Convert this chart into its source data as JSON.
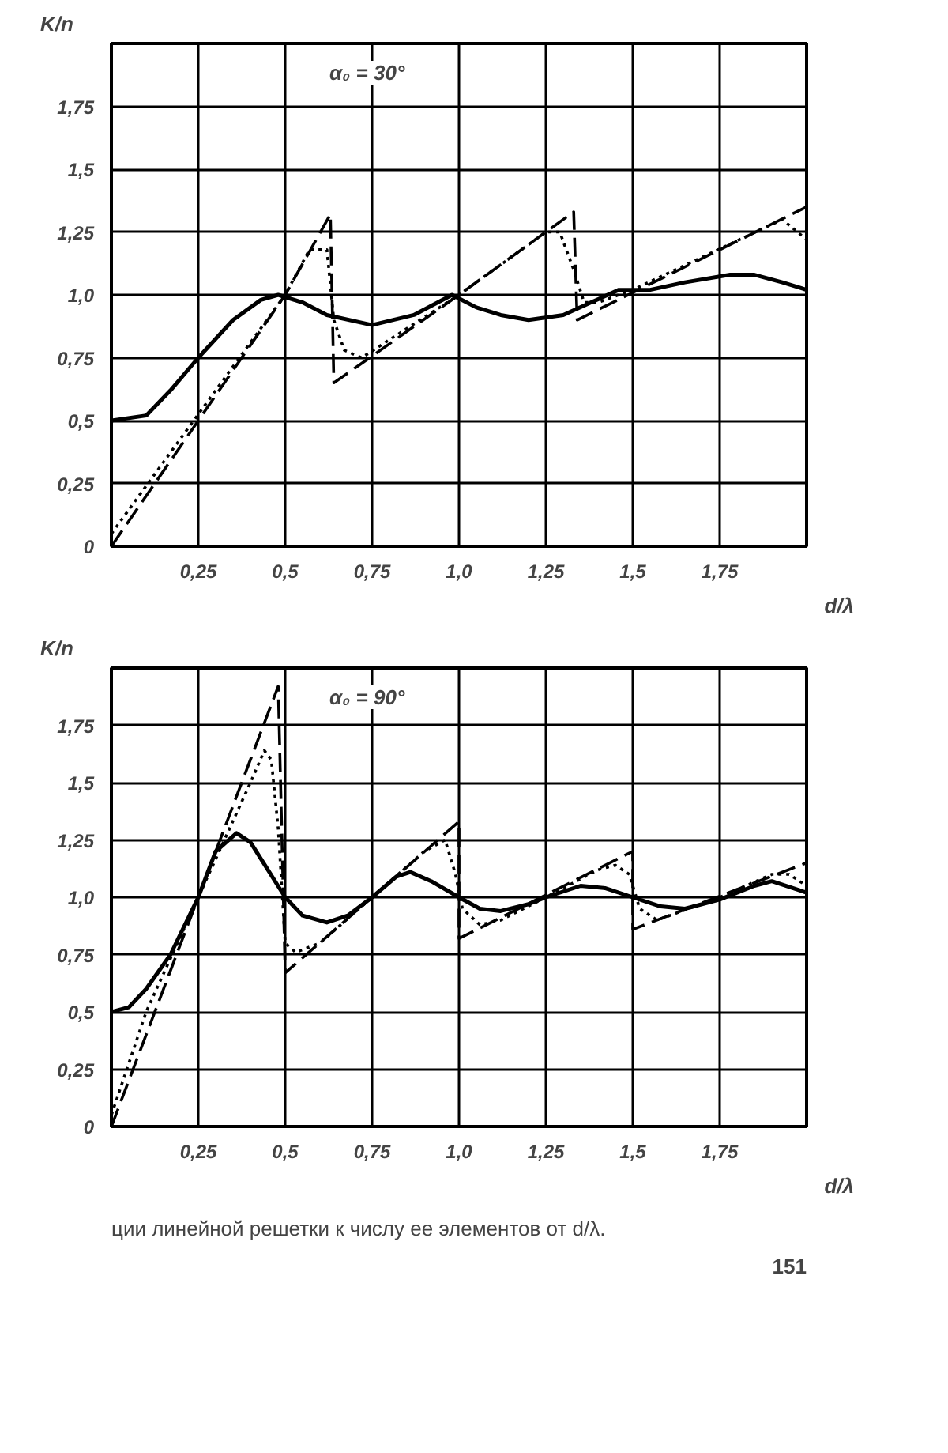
{
  "chart_data": [
    {
      "type": "line",
      "xlabel": "d/λ",
      "ylabel": "K/n",
      "annotations": [
        "α₀ = 30°"
      ],
      "xlim": [
        0,
        2
      ],
      "ylim": [
        0,
        2
      ],
      "grid": true,
      "xticks": [
        {
          "value": 0,
          "label": null
        },
        {
          "value": 0.25,
          "label": "0,25"
        },
        {
          "value": 0.5,
          "label": "0,5"
        },
        {
          "value": 0.75,
          "label": "0,75"
        },
        {
          "value": 1,
          "label": "1,0"
        },
        {
          "value": 1.25,
          "label": "1,25"
        },
        {
          "value": 1.5,
          "label": "1,5"
        },
        {
          "value": 1.75,
          "label": "1,75"
        }
      ],
      "yticks": [
        {
          "value": 0,
          "label": "0"
        },
        {
          "value": 0.25,
          "label": "0,25"
        },
        {
          "value": 0.5,
          "label": "0,5"
        },
        {
          "value": 0.75,
          "label": "0,75"
        },
        {
          "value": 1,
          "label": "1,0"
        },
        {
          "value": 1.25,
          "label": "1,25"
        },
        {
          "value": 1.5,
          "label": "1,5"
        },
        {
          "value": 1.75,
          "label": "1,75"
        }
      ],
      "series": [
        {
          "color": "#000000",
          "line_style": "solid",
          "x": [
            0,
            0.1,
            0.17,
            0.25,
            0.35,
            0.43,
            0.48,
            0.55,
            0.62,
            0.75,
            0.87,
            0.98,
            1.05,
            1.12,
            1.2,
            1.3,
            1.38,
            1.46,
            1.55,
            1.65,
            1.78,
            1.85,
            1.93,
            2.0
          ],
          "values": [
            0.5,
            0.52,
            0.62,
            0.75,
            0.9,
            0.98,
            1.0,
            0.97,
            0.92,
            0.88,
            0.92,
            1.0,
            0.95,
            0.92,
            0.9,
            0.92,
            0.97,
            1.02,
            1.02,
            1.05,
            1.08,
            1.08,
            1.05,
            1.02
          ]
        },
        {
          "color": "#000000",
          "line_style": "dashed",
          "x": [
            0,
            0.5,
            0.63,
            0.64,
            1.0,
            1.33,
            1.34,
            2.0
          ],
          "values": [
            0,
            1.0,
            1.32,
            0.65,
            1.0,
            1.33,
            0.9,
            1.35
          ]
        },
        {
          "color": "#000000",
          "line_style": "dotted",
          "x": [
            0,
            0.5,
            0.57,
            0.62,
            0.64,
            0.67,
            0.72,
            1.0,
            1.25,
            1.29,
            1.33,
            1.36,
            1.4,
            1.5,
            1.93,
            2.0
          ],
          "values": [
            0.05,
            1.0,
            1.18,
            1.18,
            0.9,
            0.78,
            0.75,
            1.0,
            1.25,
            1.25,
            1.1,
            0.97,
            0.97,
            1.02,
            1.3,
            1.22
          ]
        }
      ]
    },
    {
      "type": "line",
      "xlabel": "d/λ",
      "ylabel": "K/n",
      "annotations": [
        "α₀ = 90°",
        "ции линейной решетки к числу ее элементов от d/λ.",
        "151"
      ],
      "xlim": [
        0,
        2
      ],
      "ylim": [
        0,
        2
      ],
      "grid": true,
      "xticks": [
        {
          "value": 0,
          "label": null
        },
        {
          "value": 0.25,
          "label": "0,25"
        },
        {
          "value": 0.5,
          "label": "0,5"
        },
        {
          "value": 0.75,
          "label": "0,75"
        },
        {
          "value": 1,
          "label": "1,0"
        },
        {
          "value": 1.25,
          "label": "1,25"
        },
        {
          "value": 1.5,
          "label": "1,5"
        },
        {
          "value": 1.75,
          "label": "1,75"
        }
      ],
      "yticks": [
        {
          "value": 0,
          "label": "0"
        },
        {
          "value": 0.25,
          "label": "0,25"
        },
        {
          "value": 0.5,
          "label": "0,5"
        },
        {
          "value": 0.75,
          "label": "0,75"
        },
        {
          "value": 1,
          "label": "1,0"
        },
        {
          "value": 1.25,
          "label": "1,25"
        },
        {
          "value": 1.5,
          "label": "1,5"
        },
        {
          "value": 1.75,
          "label": "1,75"
        }
      ],
      "series": [
        {
          "color": "#000000",
          "line_style": "solid",
          "x": [
            0,
            0.05,
            0.1,
            0.17,
            0.25,
            0.3,
            0.36,
            0.4,
            0.45,
            0.5,
            0.55,
            0.62,
            0.68,
            0.75,
            0.82,
            0.86,
            0.92,
            1.0,
            1.06,
            1.12,
            1.2,
            1.25,
            1.35,
            1.42,
            1.5,
            1.58,
            1.65,
            1.75,
            1.85,
            1.9,
            2.0
          ],
          "values": [
            0.5,
            0.52,
            0.6,
            0.75,
            1.0,
            1.2,
            1.28,
            1.24,
            1.12,
            1.0,
            0.92,
            0.89,
            0.92,
            1.0,
            1.09,
            1.11,
            1.07,
            1.0,
            0.95,
            0.94,
            0.97,
            1.0,
            1.05,
            1.04,
            1.0,
            0.96,
            0.95,
            0.99,
            1.05,
            1.07,
            1.02
          ]
        },
        {
          "color": "#000000",
          "line_style": "dashed",
          "x": [
            0,
            0.48,
            0.5,
            1.0,
            1.0,
            1.5,
            1.5,
            2.0
          ],
          "values": [
            0,
            1.92,
            0.67,
            1.33,
            0.82,
            1.2,
            0.86,
            1.15
          ]
        },
        {
          "color": "#000000",
          "line_style": "dotted",
          "x": [
            0,
            0.1,
            0.25,
            0.4,
            0.44,
            0.46,
            0.48,
            0.5,
            0.53,
            0.6,
            0.75,
            0.9,
            0.96,
            0.99,
            1.01,
            1.06,
            1.12,
            1.25,
            1.4,
            1.45,
            1.49,
            1.52,
            1.57,
            1.75,
            1.9,
            1.95,
            2.0
          ],
          "values": [
            0.05,
            0.5,
            1.0,
            1.5,
            1.64,
            1.6,
            1.3,
            0.8,
            0.76,
            0.8,
            1.0,
            1.2,
            1.25,
            1.1,
            0.95,
            0.88,
            0.9,
            1.0,
            1.12,
            1.14,
            1.1,
            0.95,
            0.9,
            1.0,
            1.1,
            1.1,
            1.05
          ]
        }
      ]
    }
  ]
}
